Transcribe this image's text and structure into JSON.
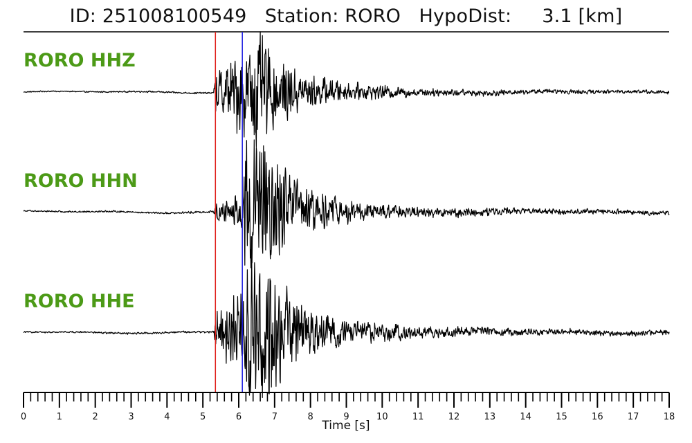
{
  "header": {
    "id_label": "ID:",
    "id_value": "251008100549",
    "station_label": "Station:",
    "station_value": "RORO",
    "dist_label": "HypoDist:",
    "dist_value": "3.1",
    "dist_unit": "[km]"
  },
  "chart_data": {
    "type": "line",
    "title": "ID: 251008100549   Station: RORO   HypoDist:     3.1 [km]",
    "xlabel": "Time [s]",
    "ylabel": "",
    "xlim": [
      0,
      18
    ],
    "x_ticks": [
      "0",
      "1",
      "2",
      "3",
      "4",
      "5",
      "6",
      "7",
      "8",
      "9",
      "10",
      "11",
      "12",
      "13",
      "14",
      "15",
      "16",
      "17",
      "18"
    ],
    "minor_tick_step": 0.2,
    "grid": false,
    "picks": [
      {
        "phase": "P",
        "time": 5.35,
        "color": "#e0201a"
      },
      {
        "phase": "S",
        "time": 6.1,
        "color": "#1a1ae0"
      }
    ],
    "series": [
      {
        "name": "RORO HHZ",
        "color": "#000000",
        "peak_time": 6.3,
        "envelope": [
          [
            0,
            0.01
          ],
          [
            5.3,
            0.015
          ],
          [
            5.35,
            0.35
          ],
          [
            6.0,
            0.7
          ],
          [
            6.5,
            1.0
          ],
          [
            7.0,
            0.6
          ],
          [
            7.8,
            0.3
          ],
          [
            9,
            0.15
          ],
          [
            11,
            0.07
          ],
          [
            14,
            0.04
          ],
          [
            18,
            0.03
          ]
        ]
      },
      {
        "name": "RORO HHN",
        "color": "#000000",
        "peak_time": 6.4,
        "envelope": [
          [
            0,
            0.01
          ],
          [
            5.3,
            0.015
          ],
          [
            5.35,
            0.12
          ],
          [
            6.0,
            0.25
          ],
          [
            6.2,
            0.9
          ],
          [
            6.6,
            1.0
          ],
          [
            7.2,
            0.6
          ],
          [
            8.0,
            0.3
          ],
          [
            9,
            0.15
          ],
          [
            11,
            0.07
          ],
          [
            14,
            0.04
          ],
          [
            18,
            0.03
          ]
        ]
      },
      {
        "name": "RORO HHE",
        "color": "#000000",
        "peak_time": 6.4,
        "envelope": [
          [
            0,
            0.01
          ],
          [
            5.3,
            0.015
          ],
          [
            5.35,
            0.3
          ],
          [
            6.0,
            0.5
          ],
          [
            6.3,
            1.0
          ],
          [
            7.0,
            0.75
          ],
          [
            7.8,
            0.35
          ],
          [
            9,
            0.17
          ],
          [
            11,
            0.08
          ],
          [
            14,
            0.045
          ],
          [
            18,
            0.035
          ]
        ]
      }
    ]
  }
}
